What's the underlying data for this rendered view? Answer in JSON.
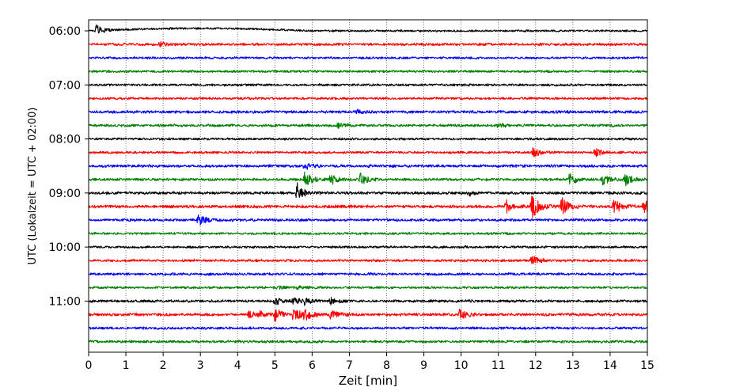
{
  "chart_data": {
    "type": "line",
    "xlabel": "Zeit  [min]",
    "ylabel": "UTC (Lokalzeit = UTC + 02:00)",
    "xlim": [
      0,
      15
    ],
    "x_ticks": [
      "0",
      "1",
      "2",
      "3",
      "4",
      "5",
      "6",
      "7",
      "8",
      "9",
      "10",
      "11",
      "12",
      "13",
      "14",
      "15"
    ],
    "y_ticks": [
      "06:00",
      "07:00",
      "08:00",
      "09:00",
      "10:00",
      "11:00"
    ],
    "grid": "vertical dotted at each minute",
    "trace_interval_minutes": 15,
    "trace_colors": [
      "#000000",
      "#ff0000",
      "#0000ff",
      "#008000"
    ],
    "traces": [
      {
        "start": "06:00",
        "color": "#000000",
        "noise": 0.22,
        "events": [
          {
            "t": 0.2,
            "amp": 1.4
          }
        ]
      },
      {
        "start": "06:15",
        "color": "#ff0000",
        "noise": 0.28,
        "events": [
          {
            "t": 1.9,
            "amp": 0.5
          }
        ]
      },
      {
        "start": "06:30",
        "color": "#0000ff",
        "noise": 0.25,
        "events": []
      },
      {
        "start": "06:45",
        "color": "#008000",
        "noise": 0.25,
        "events": []
      },
      {
        "start": "07:00",
        "color": "#000000",
        "noise": 0.25,
        "events": []
      },
      {
        "start": "07:15",
        "color": "#ff0000",
        "noise": 0.25,
        "events": []
      },
      {
        "start": "07:30",
        "color": "#0000ff",
        "noise": 0.3,
        "events": [
          {
            "t": 7.2,
            "amp": 0.5
          }
        ]
      },
      {
        "start": "07:45",
        "color": "#008000",
        "noise": 0.28,
        "events": [
          {
            "t": 6.7,
            "amp": 0.6
          },
          {
            "t": 11.0,
            "amp": 0.5
          }
        ]
      },
      {
        "start": "08:00",
        "color": "#000000",
        "noise": 0.25,
        "events": []
      },
      {
        "start": "08:15",
        "color": "#ff0000",
        "noise": 0.25,
        "events": [
          {
            "t": 11.9,
            "amp": 1.6
          },
          {
            "t": 13.6,
            "amp": 1.0
          }
        ]
      },
      {
        "start": "08:30",
        "color": "#0000ff",
        "noise": 0.3,
        "events": [
          {
            "t": 5.8,
            "amp": 0.9
          }
        ]
      },
      {
        "start": "08:45",
        "color": "#008000",
        "noise": 0.28,
        "events": [
          {
            "t": 5.8,
            "amp": 2.0
          },
          {
            "t": 6.5,
            "amp": 1.5
          },
          {
            "t": 7.3,
            "amp": 1.5
          },
          {
            "t": 12.9,
            "amp": 1.6
          },
          {
            "t": 13.8,
            "amp": 1.4
          },
          {
            "t": 14.4,
            "amp": 1.5
          }
        ]
      },
      {
        "start": "09:00",
        "color": "#000000",
        "noise": 0.3,
        "events": [
          {
            "t": 5.6,
            "amp": 2.4
          },
          {
            "t": 10.2,
            "amp": 0.6
          }
        ]
      },
      {
        "start": "09:15",
        "color": "#ff0000",
        "noise": 0.32,
        "events": [
          {
            "t": 11.2,
            "amp": 1.6
          },
          {
            "t": 11.9,
            "amp": 3.2
          },
          {
            "t": 12.7,
            "amp": 2.2
          },
          {
            "t": 14.1,
            "amp": 2.0
          },
          {
            "t": 14.9,
            "amp": 1.7
          }
        ]
      },
      {
        "start": "09:30",
        "color": "#0000ff",
        "noise": 0.28,
        "events": [
          {
            "t": 2.95,
            "amp": 1.4
          }
        ]
      },
      {
        "start": "09:45",
        "color": "#008000",
        "noise": 0.25,
        "events": []
      },
      {
        "start": "10:00",
        "color": "#000000",
        "noise": 0.25,
        "events": []
      },
      {
        "start": "10:15",
        "color": "#ff0000",
        "noise": 0.27,
        "events": [
          {
            "t": 11.9,
            "amp": 1.2
          }
        ]
      },
      {
        "start": "10:30",
        "color": "#0000ff",
        "noise": 0.28,
        "events": []
      },
      {
        "start": "10:45",
        "color": "#008000",
        "noise": 0.25,
        "events": [
          {
            "t": 5.0,
            "amp": 0.5
          },
          {
            "t": 5.6,
            "amp": 0.5
          }
        ]
      },
      {
        "start": "11:00",
        "color": "#000000",
        "noise": 0.28,
        "events": [
          {
            "t": 5.0,
            "amp": 1.0
          },
          {
            "t": 5.5,
            "amp": 1.0
          },
          {
            "t": 5.8,
            "amp": 0.8
          },
          {
            "t": 6.5,
            "amp": 0.7
          }
        ]
      },
      {
        "start": "11:15",
        "color": "#ff0000",
        "noise": 0.3,
        "events": [
          {
            "t": 4.3,
            "amp": 0.8
          },
          {
            "t": 4.6,
            "amp": 0.7
          },
          {
            "t": 5.0,
            "amp": 1.5
          },
          {
            "t": 5.5,
            "amp": 1.8
          },
          {
            "t": 5.8,
            "amp": 1.4
          },
          {
            "t": 6.5,
            "amp": 1.2
          },
          {
            "t": 9.95,
            "amp": 1.4
          }
        ]
      },
      {
        "start": "11:30",
        "color": "#0000ff",
        "noise": 0.28,
        "events": []
      },
      {
        "start": "11:45",
        "color": "#008000",
        "noise": 0.28,
        "events": []
      }
    ]
  }
}
